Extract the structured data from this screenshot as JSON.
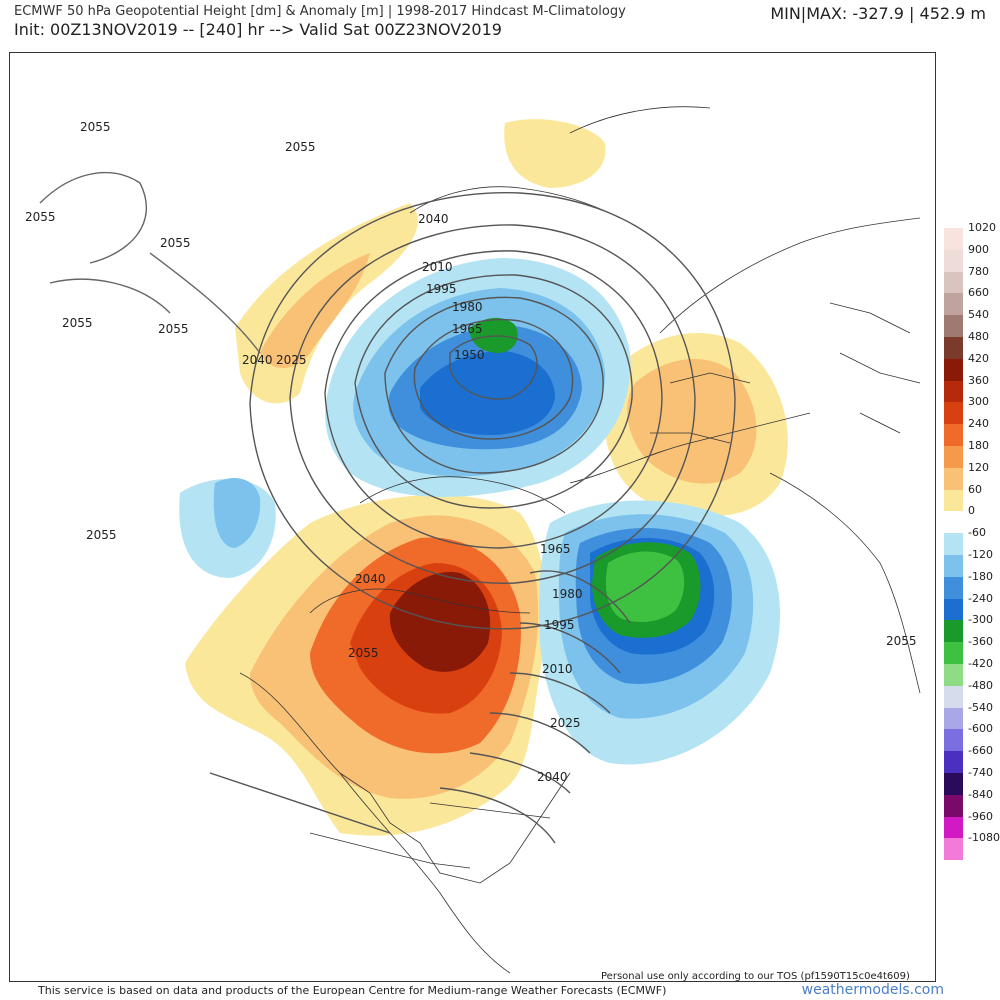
{
  "header": {
    "title": "ECMWF 50 hPa Geopotential Height [dm] & Anomaly [m] | 1998-2017 Hindcast M-Climatology",
    "subtitle": "Init: 00Z13NOV2019 -- [240] hr --> Valid Sat 00Z23NOV2019",
    "minmax": "MIN|MAX: -327.9 | 452.9 m"
  },
  "colorbar": {
    "entries": [
      {
        "label": "1020",
        "color": "#f9e3de"
      },
      {
        "label": "900",
        "color": "#eedcd8"
      },
      {
        "label": "780",
        "color": "#d9c4bf"
      },
      {
        "label": "660",
        "color": "#bfa39c"
      },
      {
        "label": "540",
        "color": "#9e7a72"
      },
      {
        "label": "480",
        "color": "#7a3a2c"
      },
      {
        "label": "420",
        "color": "#8a1a08"
      },
      {
        "label": "360",
        "color": "#b52a0a"
      },
      {
        "label": "300",
        "color": "#d9400f"
      },
      {
        "label": "240",
        "color": "#f06a2a"
      },
      {
        "label": "180",
        "color": "#f59a4a"
      },
      {
        "label": "120",
        "color": "#f8c176"
      },
      {
        "label": "60",
        "color": "#fbe79a"
      },
      {
        "label": "0",
        "color": "#ffffff"
      },
      {
        "label": "-60",
        "color": "#b4e4f4"
      },
      {
        "label": "-120",
        "color": "#7cc2ec"
      },
      {
        "label": "-180",
        "color": "#3f8fdc"
      },
      {
        "label": "-240",
        "color": "#1a6fd0"
      },
      {
        "label": "-300",
        "color": "#1a9a2a"
      },
      {
        "label": "-360",
        "color": "#3ec040"
      },
      {
        "label": "-420",
        "color": "#8fdc86"
      },
      {
        "label": "-480",
        "color": "#d6dcec"
      },
      {
        "label": "-540",
        "color": "#a8a8e6"
      },
      {
        "label": "-600",
        "color": "#7a6ee0"
      },
      {
        "label": "-660",
        "color": "#4a2fc0"
      },
      {
        "label": "-740",
        "color": "#2a0a5a"
      },
      {
        "label": "-840",
        "color": "#7a0a6a"
      },
      {
        "label": "-960",
        "color": "#d21ac4"
      },
      {
        "label": "-1080",
        "color": "#f27ad8"
      }
    ]
  },
  "contour_labels": [
    "2055",
    "2055",
    "2055",
    "2055",
    "2055",
    "2055",
    "2055",
    "2055",
    "2055",
    "2040",
    "2040",
    "2040",
    "2040",
    "2025",
    "2025",
    "2010",
    "2010",
    "1995",
    "1995",
    "1980",
    "1980",
    "1965",
    "1965",
    "1950"
  ],
  "footer": {
    "personal_use": "Personal use only according to our TOS (pf1590T15c0e4t609)",
    "source": "This service is based on data and products of the European Centre for Medium-range Weather Forecasts (ECMWF)",
    "brand": "weathermodels.com"
  }
}
